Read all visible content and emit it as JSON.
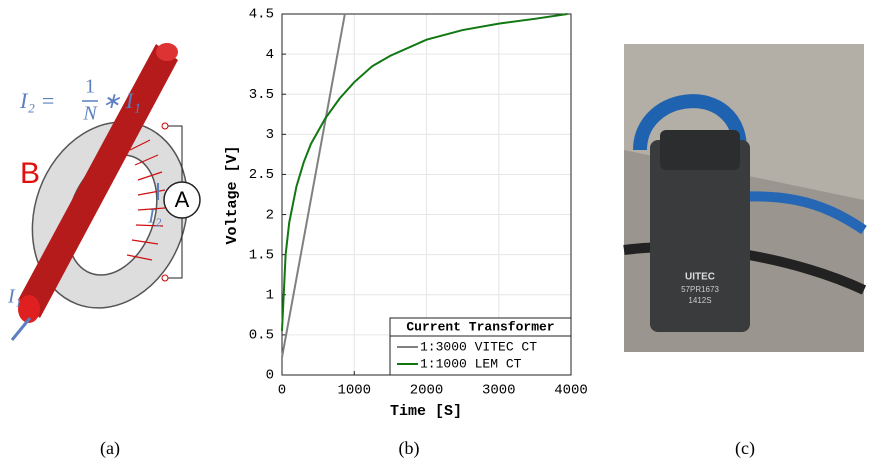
{
  "diagram": {
    "formula": {
      "lhs": "I₂ =",
      "numerator": "1",
      "denominator": "N",
      "rhs": "∗ I₁"
    },
    "field_label": "B",
    "meter_label": "A",
    "secondary_current": "I₂",
    "primary_current": "I₁"
  },
  "chart_data": {
    "type": "line",
    "xlabel": "Time [S]",
    "ylabel": "Voltage [V]",
    "xlim": [
      0,
      4000
    ],
    "ylim": [
      0,
      4.5
    ],
    "xticks": [
      0,
      1000,
      2000,
      3000,
      4000
    ],
    "yticks": [
      0,
      0.5,
      1,
      1.5,
      2,
      2.5,
      3,
      3.5,
      4,
      4.5
    ],
    "grid": true,
    "legend_title": "Current Transformer",
    "legend_position": "lower right",
    "series": [
      {
        "name": "1:3000 VITEC CT",
        "color": "#808080",
        "x": [
          0,
          870
        ],
        "values": [
          0.22,
          4.5
        ]
      },
      {
        "name": "1:1000 LEM CT",
        "color": "#117711",
        "x": [
          0,
          50,
          100,
          200,
          300,
          400,
          600,
          800,
          1000,
          1250,
          1500,
          2000,
          2500,
          3000,
          3500,
          3950
        ],
        "values": [
          0.55,
          1.5,
          1.9,
          2.35,
          2.65,
          2.88,
          3.2,
          3.45,
          3.65,
          3.85,
          3.98,
          4.18,
          4.3,
          4.38,
          4.44,
          4.5
        ]
      }
    ]
  },
  "photo": {
    "brand": "UITEC",
    "model": "57PR1673",
    "code": "1412S"
  },
  "captions": [
    "(a)",
    "(b)",
    "(c)"
  ]
}
